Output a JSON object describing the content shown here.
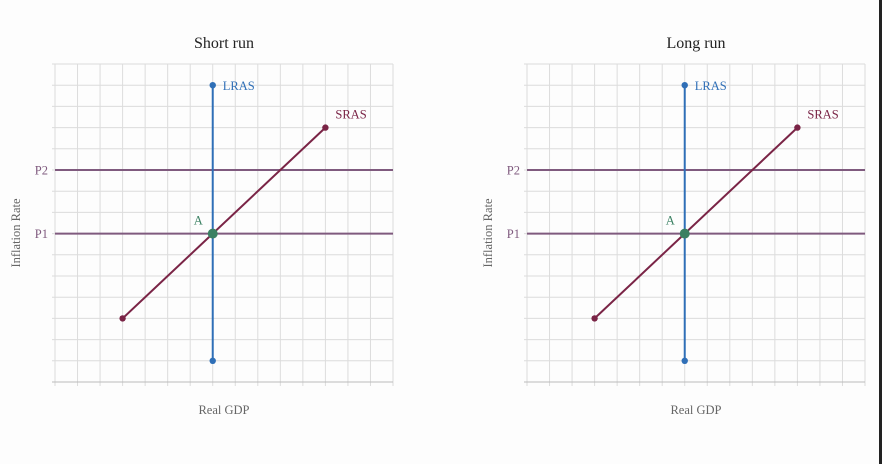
{
  "chart_data": [
    {
      "type": "line",
      "title": "Short run",
      "xlabel": "Real GDP",
      "ylabel": "Inflation Rate",
      "xlim": [
        0,
        15
      ],
      "ylim": [
        0,
        15
      ],
      "grid": true,
      "yticks": [
        {
          "value": 7,
          "label": "P1"
        },
        {
          "value": 10,
          "label": "P2"
        }
      ],
      "hlines": [
        {
          "y": 7,
          "color": "#7f5a7e"
        },
        {
          "y": 10,
          "color": "#7f5a7e"
        }
      ],
      "series": [
        {
          "name": "LRAS",
          "color": "#2f6fb7",
          "points": [
            [
              7,
              1
            ],
            [
              7,
              14
            ]
          ]
        },
        {
          "name": "SRAS",
          "color": "#7a2446",
          "points": [
            [
              3,
              3
            ],
            [
              12,
              12
            ]
          ]
        }
      ],
      "points": [
        {
          "label": "A",
          "x": 7,
          "y": 7,
          "color": "#3a8062"
        }
      ]
    },
    {
      "type": "line",
      "title": "Long run",
      "xlabel": "Real GDP",
      "ylabel": "Inflation Rate",
      "xlim": [
        0,
        15
      ],
      "ylim": [
        0,
        15
      ],
      "grid": true,
      "yticks": [
        {
          "value": 7,
          "label": "P1"
        },
        {
          "value": 10,
          "label": "P2"
        }
      ],
      "hlines": [
        {
          "y": 7,
          "color": "#7f5a7e"
        },
        {
          "y": 10,
          "color": "#7f5a7e"
        }
      ],
      "series": [
        {
          "name": "LRAS",
          "color": "#2f6fb7",
          "points": [
            [
              7,
              1
            ],
            [
              7,
              14
            ]
          ]
        },
        {
          "name": "SRAS",
          "color": "#7a2446",
          "points": [
            [
              3,
              3
            ],
            [
              12,
              12
            ]
          ]
        }
      ],
      "points": [
        {
          "label": "A",
          "x": 7,
          "y": 7,
          "color": "#3a8062"
        }
      ]
    }
  ]
}
